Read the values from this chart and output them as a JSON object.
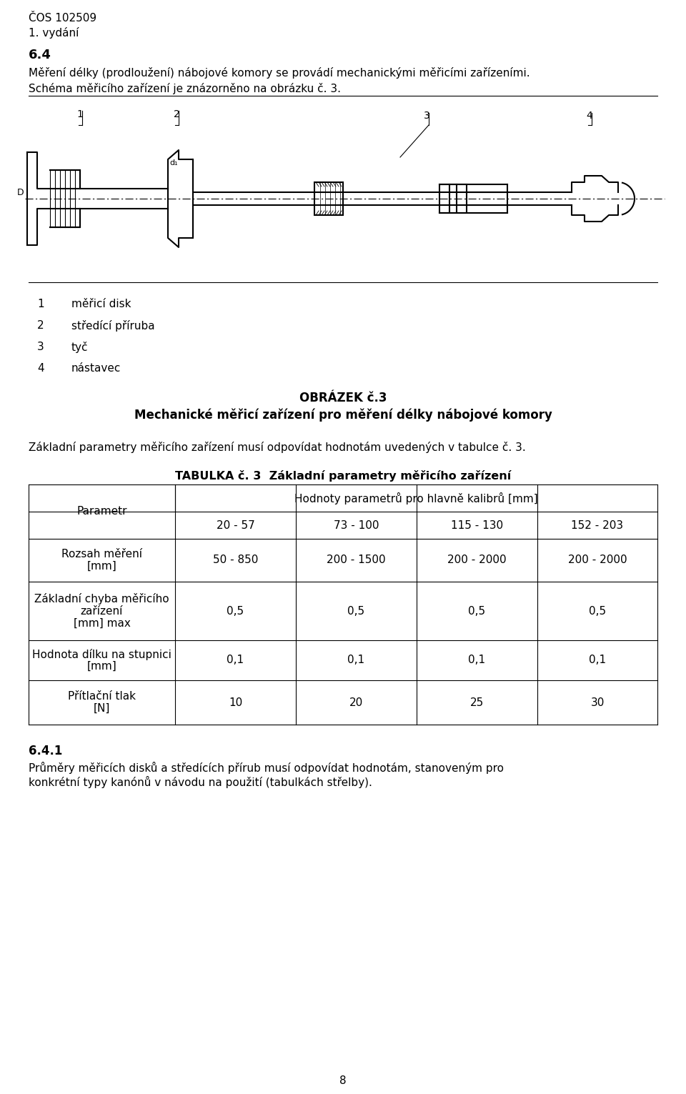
{
  "bg_color": "#ffffff",
  "text_color": "#000000",
  "page_width": 9.6,
  "page_height": 15.31,
  "header_line1": "ČOS 102509",
  "header_line2": "1. vydání",
  "section_num": "6.4",
  "para1": "Měření délky (prodloužení) nábojové komory se provádí mechanickými měřicími zařízeními.",
  "para2": "Schéma měřicího zařízení je znázorněno na obrázku č. 3.",
  "legend_items": [
    [
      "1",
      "měřicí disk"
    ],
    [
      "2",
      "středící příruba"
    ],
    [
      "3",
      "tyč"
    ],
    [
      "4",
      "nástavec"
    ]
  ],
  "figure_label": "OBRÁZEK č.3",
  "figure_caption": "Mechanické měřicí zařízení pro měření délky nábojové komory",
  "text_before_table": "Základní parametry měřicího zařízení musí odpovídat hodnotám uvedených v tabulce č. 3.",
  "table_title": "TABULKA č. 3  Základní parametry měřicího zařízení",
  "table_col_header0": "Parametr",
  "table_col_header1": "Hodnoty parametrů pro hlavně kalibrů [mm]",
  "table_sub_headers": [
    "20 - 57",
    "73 - 100",
    "115 - 130",
    "152 - 203"
  ],
  "table_rows": [
    {
      "param": "Rozsah měření\n[mm]",
      "values": [
        "50 - 850",
        "200 - 1500",
        "200 - 2000",
        "200 - 2000"
      ]
    },
    {
      "param": "Základní chyba měřicího\nzařízení\n[mm] max",
      "values": [
        "0,5",
        "0,5",
        "0,5",
        "0,5"
      ]
    },
    {
      "param": "Hodnota dílku na stupnici\n[mm]",
      "values": [
        "0,1",
        "0,1",
        "0,1",
        "0,1"
      ]
    },
    {
      "param": "Přítlační tlak\n[N]",
      "values": [
        "10",
        "20",
        "25",
        "30"
      ]
    }
  ],
  "section_641": "6.4.1",
  "para_641_line1": "Průměry měřicích disků a středících přírub musí odpovídat hodnotám, stanoveným pro",
  "para_641_line2": "konkrétní typy kanónů v návodu na použití (tabulkách střelby).",
  "page_num": "8"
}
